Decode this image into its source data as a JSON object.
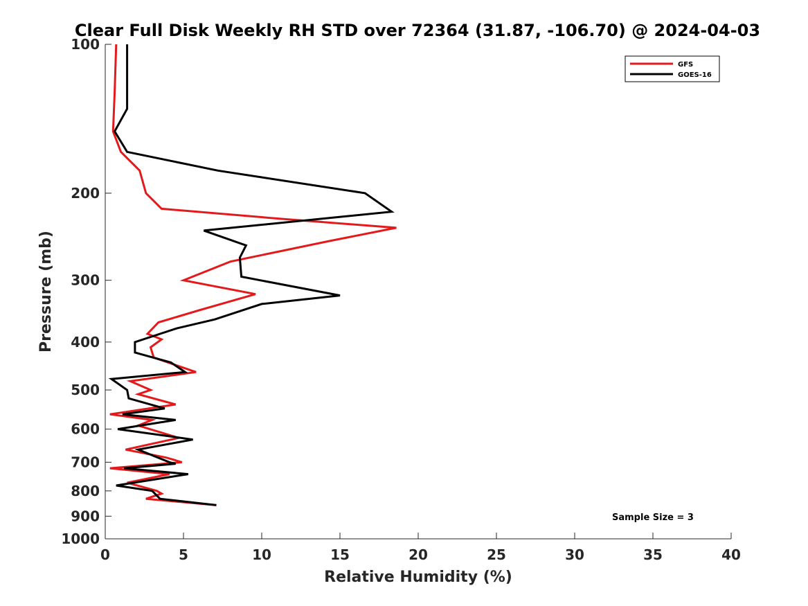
{
  "chart_data": {
    "type": "line",
    "title": "Clear Full Disk Weekly RH STD over 72364 (31.87, -106.70) @ 2024-04-03",
    "xlabel": "Relative Humidity (%)",
    "ylabel": "Pressure (mb)",
    "xlim": [
      0,
      40
    ],
    "ylim": [
      100,
      1000
    ],
    "yscale": "log",
    "y_reversed": true,
    "xticks": [
      0,
      5,
      10,
      15,
      20,
      25,
      30,
      35,
      40
    ],
    "yticks": [
      100,
      200,
      300,
      400,
      500,
      600,
      700,
      800,
      900,
      1000
    ],
    "grid": false,
    "legend_position": "top-right",
    "annotation": "Sample Size = 3",
    "series": [
      {
        "name": "GFS",
        "color": "#e31a1c",
        "points": [
          [
            0.7,
            100
          ],
          [
            0.6,
            125
          ],
          [
            0.5,
            150
          ],
          [
            1.0,
            165
          ],
          [
            2.2,
            180
          ],
          [
            2.6,
            200
          ],
          [
            3.6,
            215
          ],
          [
            11.0,
            225
          ],
          [
            18.6,
            235
          ],
          [
            14.3,
            250
          ],
          [
            8.0,
            275
          ],
          [
            5.0,
            300
          ],
          [
            9.6,
            320
          ],
          [
            6.0,
            345
          ],
          [
            3.4,
            365
          ],
          [
            2.7,
            385
          ],
          [
            3.6,
            395
          ],
          [
            2.9,
            410
          ],
          [
            3.1,
            430
          ],
          [
            5.8,
            460
          ],
          [
            1.6,
            480
          ],
          [
            2.9,
            500
          ],
          [
            2.1,
            510
          ],
          [
            4.5,
            535
          ],
          [
            0.3,
            560
          ],
          [
            3.0,
            575
          ],
          [
            2.1,
            590
          ],
          [
            4.7,
            625
          ],
          [
            1.3,
            660
          ],
          [
            3.9,
            685
          ],
          [
            4.9,
            700
          ],
          [
            0.3,
            720
          ],
          [
            4.1,
            740
          ],
          [
            1.4,
            770
          ],
          [
            3.3,
            800
          ],
          [
            3.6,
            810
          ],
          [
            2.6,
            830
          ],
          [
            7.1,
            855
          ]
        ]
      },
      {
        "name": "GOES-16",
        "color": "#000000",
        "points": [
          [
            1.4,
            100
          ],
          [
            1.4,
            135
          ],
          [
            0.6,
            150
          ],
          [
            1.4,
            165
          ],
          [
            7.2,
            180
          ],
          [
            16.6,
            200
          ],
          [
            18.3,
            218
          ],
          [
            6.3,
            238
          ],
          [
            9.0,
            255
          ],
          [
            8.6,
            270
          ],
          [
            8.7,
            295
          ],
          [
            15.0,
            322
          ],
          [
            10.0,
            335
          ],
          [
            7.0,
            360
          ],
          [
            4.6,
            375
          ],
          [
            1.9,
            400
          ],
          [
            1.9,
            420
          ],
          [
            4.2,
            440
          ],
          [
            5.1,
            460
          ],
          [
            0.4,
            475
          ],
          [
            1.4,
            500
          ],
          [
            1.5,
            520
          ],
          [
            3.8,
            545
          ],
          [
            1.1,
            560
          ],
          [
            4.5,
            575
          ],
          [
            0.8,
            600
          ],
          [
            5.6,
            630
          ],
          [
            2.1,
            660
          ],
          [
            4.1,
            700
          ],
          [
            4.5,
            705
          ],
          [
            1.2,
            720
          ],
          [
            5.3,
            740
          ],
          [
            0.7,
            780
          ],
          [
            3.0,
            800
          ],
          [
            3.5,
            830
          ],
          [
            7.1,
            855
          ]
        ]
      }
    ]
  }
}
